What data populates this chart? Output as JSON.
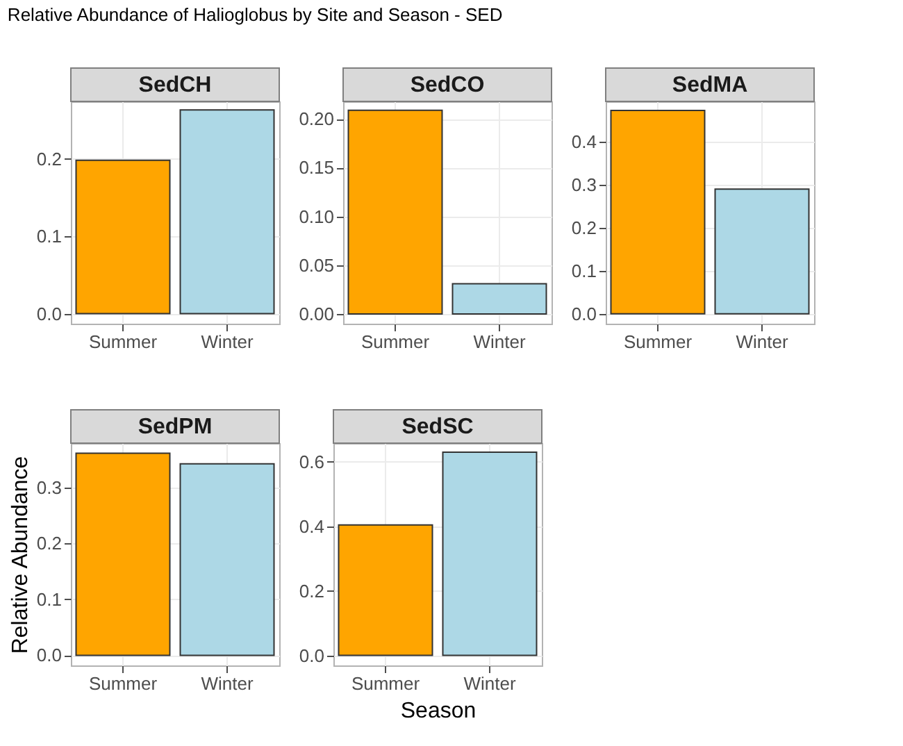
{
  "chart_data": [
    {
      "type": "other",
      "title": "Relative Abundance of Halioglobus by Site and Season - SED"
    },
    {
      "type": "bar",
      "title": "SedCH",
      "categories": [
        "Summer",
        "Winter"
      ],
      "values": [
        0.198,
        0.263
      ],
      "colors": [
        "#ffa500",
        "#add8e6"
      ],
      "ylim": [
        -0.013,
        0.274
      ],
      "yticks": [
        {
          "value": 0,
          "label": "0.0"
        },
        {
          "value": 0.1,
          "label": "0.1"
        },
        {
          "value": 0.2,
          "label": "0.2"
        }
      ],
      "grid": true
    },
    {
      "type": "bar",
      "title": "SedCO",
      "categories": [
        "Summer",
        "Winter"
      ],
      "values": [
        0.209,
        0.031
      ],
      "colors": [
        "#ffa500",
        "#add8e6"
      ],
      "ylim": [
        -0.01,
        0.218
      ],
      "yticks": [
        {
          "value": 0,
          "label": "0.00"
        },
        {
          "value": 0.05,
          "label": "0.05"
        },
        {
          "value": 0.1,
          "label": "0.10"
        },
        {
          "value": 0.15,
          "label": "0.15"
        },
        {
          "value": 0.2,
          "label": "0.20"
        }
      ],
      "grid": true
    },
    {
      "type": "bar",
      "title": "SedMA",
      "categories": [
        "Summer",
        "Winter"
      ],
      "values": [
        0.473,
        0.29
      ],
      "colors": [
        "#ffa500",
        "#add8e6"
      ],
      "ylim": [
        -0.023,
        0.494
      ],
      "yticks": [
        {
          "value": 0,
          "label": "0.0"
        },
        {
          "value": 0.1,
          "label": "0.1"
        },
        {
          "value": 0.2,
          "label": "0.2"
        },
        {
          "value": 0.3,
          "label": "0.3"
        },
        {
          "value": 0.4,
          "label": "0.4"
        }
      ],
      "grid": true
    },
    {
      "type": "bar",
      "title": "SedPM",
      "ylabel": "Relative Abundance",
      "categories": [
        "Summer",
        "Winter"
      ],
      "values": [
        0.361,
        0.342
      ],
      "colors": [
        "#ffa500",
        "#add8e6"
      ],
      "ylim": [
        -0.018,
        0.379
      ],
      "yticks": [
        {
          "value": 0,
          "label": "0.0"
        },
        {
          "value": 0.1,
          "label": "0.1"
        },
        {
          "value": 0.2,
          "label": "0.2"
        },
        {
          "value": 0.3,
          "label": "0.3"
        }
      ],
      "grid": true
    },
    {
      "type": "bar",
      "title": "SedSC",
      "xlabel": "Season",
      "categories": [
        "Summer",
        "Winter"
      ],
      "values": [
        0.404,
        0.629
      ],
      "colors": [
        "#ffa500",
        "#add8e6"
      ],
      "ylim": [
        -0.031,
        0.657
      ],
      "yticks": [
        {
          "value": 0,
          "label": "0.0"
        },
        {
          "value": 0.2,
          "label": "0.2"
        },
        {
          "value": 0.4,
          "label": "0.4"
        },
        {
          "value": 0.6,
          "label": "0.6"
        }
      ],
      "grid": true
    }
  ]
}
